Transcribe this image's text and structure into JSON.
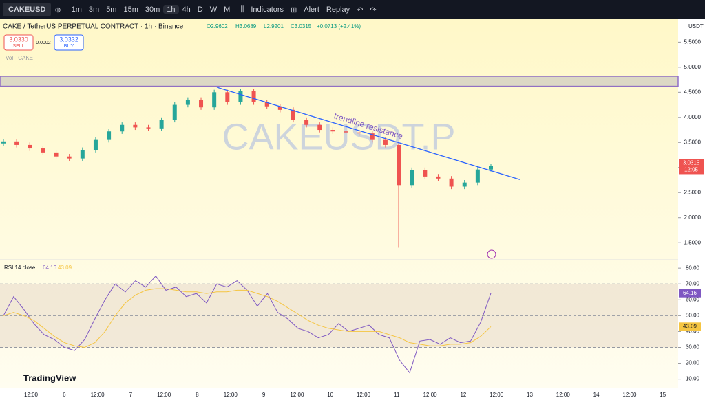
{
  "toolbar": {
    "symbol": "CAKEUSD",
    "intervals": [
      "1m",
      "3m",
      "5m",
      "15m",
      "30m",
      "1h",
      "4h",
      "D",
      "W",
      "M"
    ],
    "indicators": "Indicators",
    "alert": "Alert",
    "replay": "Replay"
  },
  "legend": {
    "title": "CAKE / TetherUS PERPETUAL CONTRACT · 1h · Binance",
    "o": "O2.9602",
    "h": "H3.0689",
    "l": "L2.9201",
    "c": "C3.0315",
    "change": "+0.0713 (+2.41%)",
    "sell_price": "3.0330",
    "sell": "SELL",
    "spread": "0.0002",
    "buy_price": "3.0332",
    "buy": "BUY",
    "volume": "Vol · CAKE"
  },
  "currency": "USDT",
  "watermark": "CAKEUSDT.P",
  "branding": "TradingView",
  "countdown": "12:05",
  "chart_data": [
    {
      "type": "candlestick",
      "annotation": "trendline resistance",
      "ylim": [
        1.16,
        5.93
      ],
      "yticks": [
        {
          "value": 1.5,
          "label": "1.5000"
        },
        {
          "value": 2,
          "label": "2.0000"
        },
        {
          "value": 2.5,
          "label": "2.5000"
        },
        {
          "value": 3,
          "label": "3.0000"
        },
        {
          "value": 3.5,
          "label": "3.5000"
        },
        {
          "value": 4,
          "label": "4.0000"
        },
        {
          "value": 4.5,
          "label": "4.5000"
        },
        {
          "value": 5,
          "label": "5.0000"
        },
        {
          "value": 5.5,
          "label": "5.5000"
        }
      ],
      "x_labels": [
        "12:00",
        "6",
        "12:00",
        "7",
        "12:00",
        "8",
        "12:00",
        "9",
        "12:00",
        "10",
        "12:00",
        "11",
        "12:00",
        "12",
        "12:00",
        "13",
        "12:00",
        "14",
        "12:00",
        "15"
      ],
      "zone": [
        4.62,
        4.82
      ],
      "trendline": [
        4.6,
        2.76
      ],
      "up_color": "#26a69a",
      "down_color": "#ef5350",
      "open": [
        3.48,
        3.52,
        3.45,
        3.38,
        3.3,
        3.22,
        3.18,
        3.35,
        3.55,
        3.72,
        3.85,
        3.8,
        3.78,
        3.95,
        4.25,
        4.35,
        4.2,
        4.5,
        4.3,
        4.52,
        4.3,
        4.22,
        4.15,
        3.95,
        3.85,
        3.75,
        3.72,
        3.7,
        3.68,
        3.55,
        3.45,
        2.65,
        2.95,
        2.82,
        2.78,
        2.62,
        2.7,
        2.9602
      ],
      "high": [
        3.57,
        3.57,
        3.5,
        3.43,
        3.35,
        3.27,
        3.4,
        3.6,
        3.77,
        3.9,
        3.9,
        3.85,
        4.0,
        4.3,
        4.4,
        4.4,
        4.55,
        4.55,
        4.57,
        4.57,
        4.35,
        4.27,
        4.2,
        4.0,
        3.9,
        3.8,
        3.77,
        3.75,
        3.73,
        3.6,
        3.5,
        3.0,
        3.0,
        2.87,
        2.83,
        2.75,
        3.01,
        3.0689
      ],
      "low": [
        3.43,
        3.4,
        3.33,
        3.25,
        3.17,
        3.13,
        3.13,
        3.3,
        3.5,
        3.67,
        3.75,
        3.73,
        3.73,
        3.9,
        4.2,
        4.15,
        4.15,
        4.25,
        4.25,
        4.25,
        4.17,
        4.1,
        3.9,
        3.8,
        3.7,
        3.67,
        3.65,
        3.63,
        3.5,
        3.4,
        1.4,
        2.6,
        2.77,
        2.73,
        2.57,
        2.57,
        2.65,
        2.9201
      ],
      "close": [
        3.52,
        3.45,
        3.38,
        3.3,
        3.22,
        3.18,
        3.35,
        3.55,
        3.72,
        3.85,
        3.8,
        3.78,
        3.95,
        4.25,
        4.35,
        4.2,
        4.5,
        4.3,
        4.52,
        4.3,
        4.22,
        4.15,
        3.95,
        3.85,
        3.75,
        3.72,
        3.7,
        3.68,
        3.55,
        3.45,
        2.65,
        2.95,
        2.82,
        2.78,
        2.62,
        2.7,
        2.96,
        3.0315
      ]
    },
    {
      "type": "line",
      "title": "RSI 14 close",
      "ylim": [
        4.2,
        84.4
      ],
      "levels": [
        30,
        50,
        70
      ],
      "yticks": [
        {
          "value": 10,
          "label": "10.00"
        },
        {
          "value": 20,
          "label": "20.00"
        },
        {
          "value": 30,
          "label": "30.00"
        },
        {
          "value": 40,
          "label": "40.00"
        },
        {
          "value": 50,
          "label": "50.00"
        },
        {
          "value": 60,
          "label": "60.00"
        },
        {
          "value": 70,
          "label": "70.00"
        },
        {
          "value": 80,
          "label": "80.00"
        }
      ],
      "series": [
        {
          "color": "#7e57c2",
          "values": [
            50,
            62,
            54,
            45,
            38,
            35,
            30,
            28,
            35,
            48,
            60,
            70,
            65,
            72,
            68,
            75,
            66,
            68,
            62,
            64,
            58,
            70,
            68,
            72,
            66,
            56,
            64,
            52,
            48,
            42,
            40,
            36,
            38,
            45,
            40,
            42,
            44,
            38,
            36,
            22,
            14,
            34,
            35,
            32,
            36,
            33,
            34,
            46,
            64.16
          ]
        },
        {
          "color": "#f5c542",
          "values": [
            50,
            52,
            50,
            47,
            42,
            37,
            33,
            31,
            30,
            33,
            40,
            50,
            58,
            63,
            66,
            67,
            67,
            66,
            65,
            65,
            64,
            65,
            65,
            66,
            66,
            64,
            62,
            59,
            55,
            51,
            47,
            44,
            42,
            41,
            40,
            40,
            40,
            40,
            38,
            36,
            33,
            32,
            31,
            31,
            32,
            32,
            33,
            37,
            43.09
          ]
        }
      ]
    }
  ]
}
